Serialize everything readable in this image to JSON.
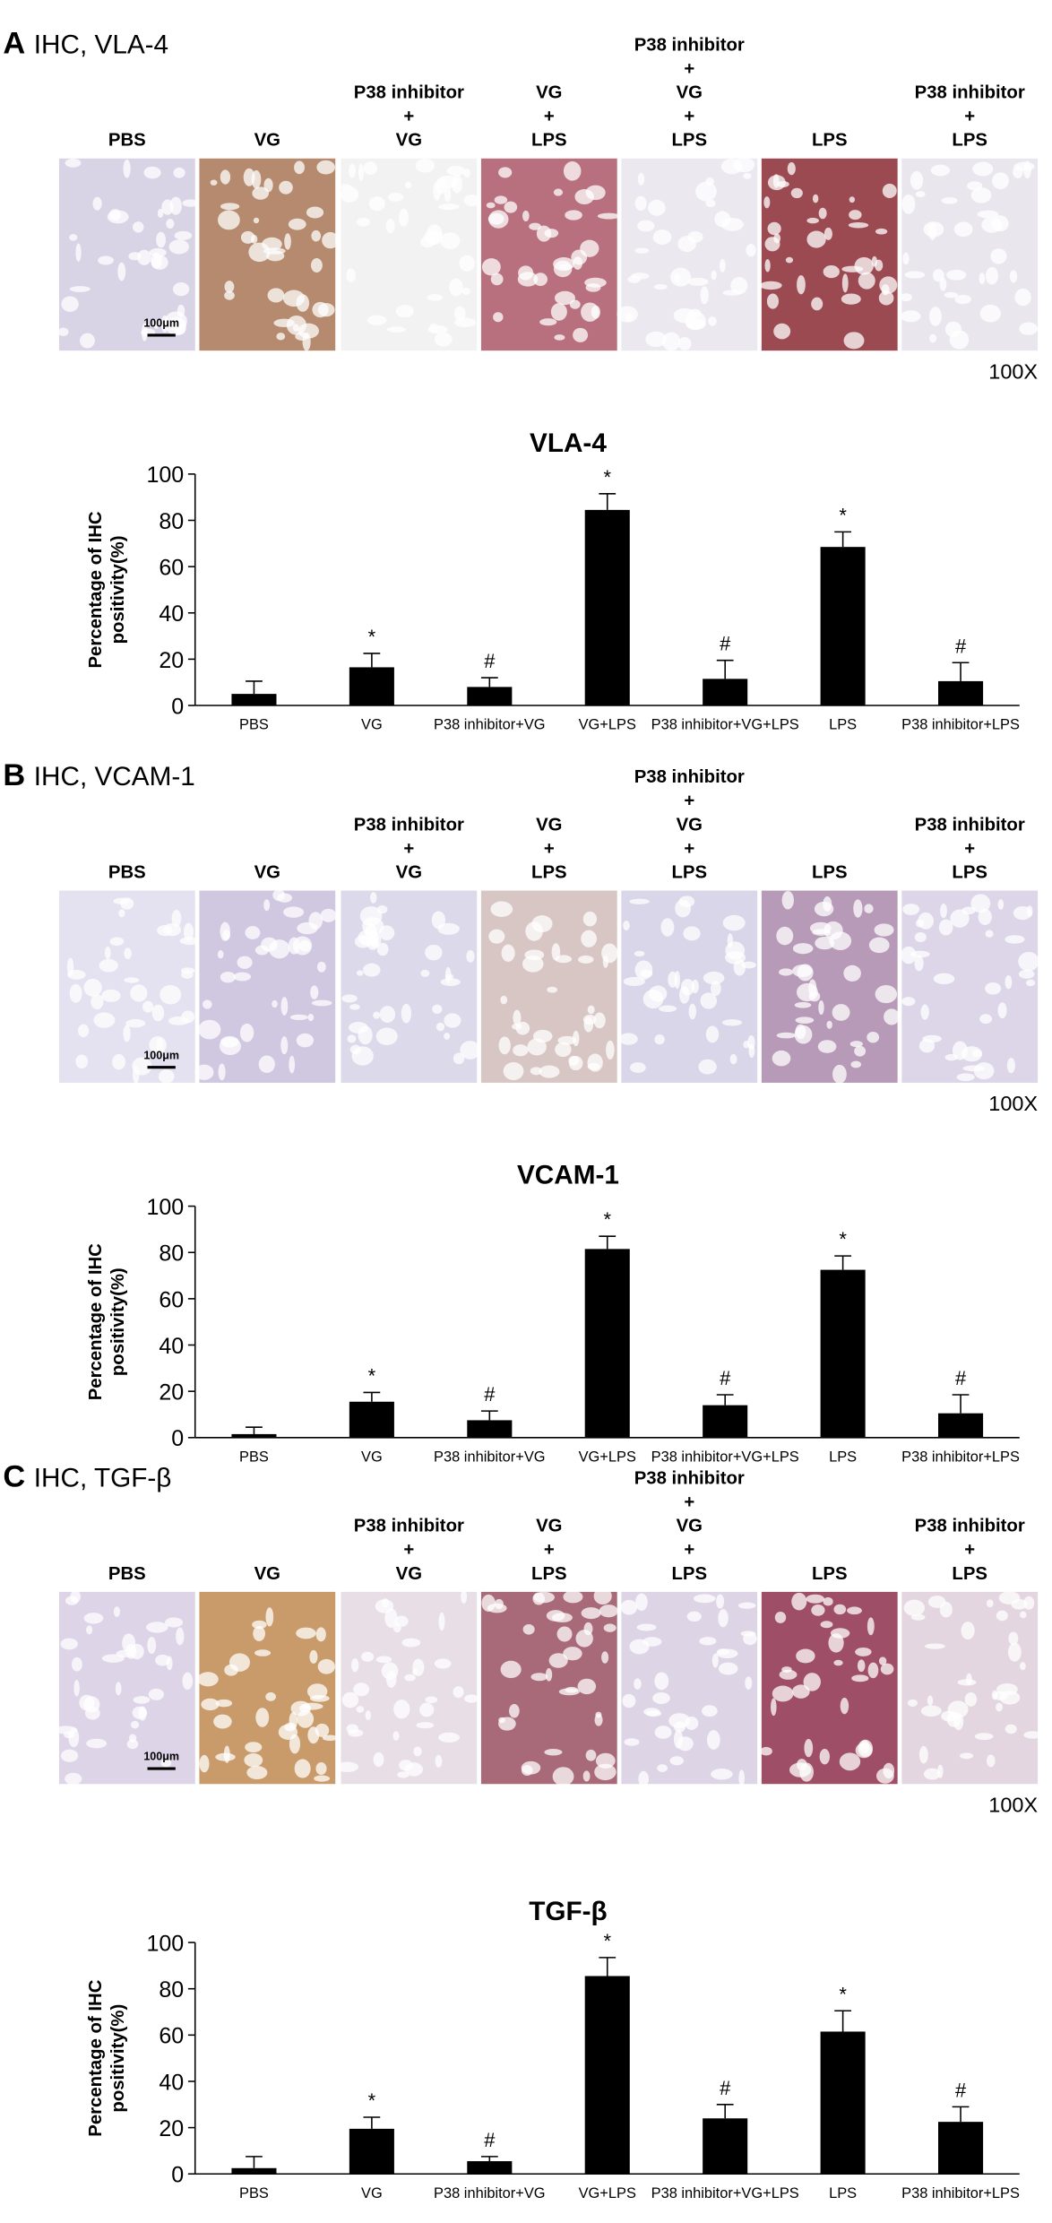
{
  "panels": [
    {
      "letter": "A",
      "heading": "IHC, VLA-4",
      "scale_bar": "100μm",
      "magnification": "100X",
      "image_labels": [
        [
          "PBS"
        ],
        [
          "VG"
        ],
        [
          "P38 inhibitor",
          "+",
          "VG"
        ],
        [
          "VG",
          "+",
          "LPS"
        ],
        [
          "P38 inhibitor",
          "+",
          "VG",
          "+",
          "LPS"
        ],
        [
          "LPS"
        ],
        [
          "P38 inhibitor",
          "+",
          "LPS"
        ]
      ]
    },
    {
      "letter": "B",
      "heading": "IHC, VCAM-1",
      "scale_bar": "100μm",
      "magnification": "100X",
      "image_labels": [
        [
          "PBS"
        ],
        [
          "VG"
        ],
        [
          "P38 inhibitor",
          "+",
          "VG"
        ],
        [
          "VG",
          "+",
          "LPS"
        ],
        [
          "P38 inhibitor",
          "+",
          "VG",
          "+",
          "LPS"
        ],
        [
          "LPS"
        ],
        [
          "P38 inhibitor",
          "+",
          "LPS"
        ]
      ]
    },
    {
      "letter": "C",
      "heading": "IHC, TGF-β",
      "scale_bar": "100μm",
      "magnification": "100X",
      "image_labels": [
        [
          "PBS"
        ],
        [
          "VG"
        ],
        [
          "P38 inhibitor",
          "+",
          "VG"
        ],
        [
          "VG",
          "+",
          "LPS"
        ],
        [
          "P38 inhibitor",
          "+",
          "VG",
          "+",
          "LPS"
        ],
        [
          "LPS"
        ],
        [
          "P38 inhibitor",
          "+",
          "LPS"
        ]
      ]
    }
  ],
  "chart_data": [
    {
      "type": "bar",
      "title": "VLA-4",
      "ylabel": [
        "Percentage of IHC",
        "positivity(%)"
      ],
      "categories": [
        "PBS",
        "VG",
        "P38 inhibitor+VG",
        "VG+LPS",
        "P38 inhibitor+VG+LPS",
        "LPS",
        "P38 inhibitor+LPS"
      ],
      "values": [
        5,
        16.5,
        8,
        84.5,
        11.5,
        68.5,
        10.5
      ],
      "errors": [
        5.5,
        6,
        4,
        7,
        8,
        6.5,
        8
      ],
      "marks": [
        null,
        "*",
        "#",
        "*",
        "#",
        "*",
        "#"
      ],
      "color": "#000000",
      "ylim": [
        0,
        100
      ],
      "yticks": [
        0,
        20,
        40,
        60,
        80,
        100
      ]
    },
    {
      "type": "bar",
      "title": "VCAM-1",
      "ylabel": [
        "Percentage of IHC",
        "positivity(%)"
      ],
      "categories": [
        "PBS",
        "VG",
        "P38 inhibitor+VG",
        "VG+LPS",
        "P38 inhibitor+VG+LPS",
        "LPS",
        "P38 inhibitor+LPS"
      ],
      "values": [
        1.5,
        15.5,
        7.5,
        81.5,
        14,
        72.5,
        10.5
      ],
      "errors": [
        3,
        4,
        4,
        5.5,
        4.5,
        6,
        8
      ],
      "marks": [
        null,
        "*",
        "#",
        "*",
        "#",
        "*",
        "#"
      ],
      "color": "#000000",
      "ylim": [
        0,
        100
      ],
      "yticks": [
        0,
        20,
        40,
        60,
        80,
        100
      ]
    },
    {
      "type": "bar",
      "title": "TGF-β",
      "ylabel": [
        "Percentage of IHC",
        "positivity(%)"
      ],
      "categories": [
        "PBS",
        "VG",
        "P38 inhibitor+VG",
        "VG+LPS",
        "P38 inhibitor+VG+LPS",
        "LPS",
        "P38 inhibitor+LPS"
      ],
      "values": [
        2.5,
        19.5,
        5.5,
        85.5,
        24,
        61.5,
        22.5
      ],
      "errors": [
        5,
        5,
        2,
        8,
        6,
        9,
        6.5
      ],
      "marks": [
        null,
        "*",
        "#",
        "*",
        "#",
        "*",
        "#"
      ],
      "color": "#000000",
      "ylim": [
        0,
        100
      ],
      "yticks": [
        0,
        20,
        40,
        60,
        80,
        100
      ]
    }
  ]
}
